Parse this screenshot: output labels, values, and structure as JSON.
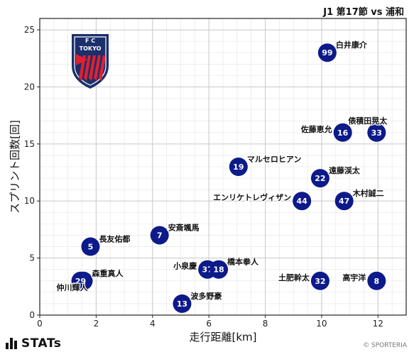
{
  "title": "J1 第17節 vs 浦和",
  "brand": "STATs",
  "copyright": "© SPORTERIA",
  "logo": {
    "top_text": "F   C",
    "middle_text": "TOKYO",
    "colors": {
      "navy": "#1b2f6b",
      "red": "#e02030"
    }
  },
  "colors": {
    "marker": "#0d1a8a",
    "grid": "#c8c8c8",
    "grid_minor": "#e4e4e4"
  },
  "chart_data": {
    "type": "scatter",
    "xlabel": "走行距離[km]",
    "ylabel": "スプリント回数[回]",
    "xlim": [
      0,
      13
    ],
    "ylim": [
      0,
      26
    ],
    "xticks": [
      0,
      2,
      4,
      6,
      8,
      10,
      12
    ],
    "yticks": [
      0,
      5,
      10,
      15,
      20,
      25
    ],
    "grid": true,
    "points": [
      {
        "number": "99",
        "name": "白井康介",
        "x": 10.2,
        "y": 23,
        "label_pos": "right"
      },
      {
        "number": "16",
        "name": "佐藤恵允",
        "x": 10.75,
        "y": 16,
        "label_pos": "left"
      },
      {
        "number": "33",
        "name": "俵積田晃太",
        "x": 11.95,
        "y": 16,
        "label_pos": "upper-left"
      },
      {
        "number": "19",
        "name": "マルセロヒアン",
        "x": 7.05,
        "y": 13,
        "label_pos": "right"
      },
      {
        "number": "22",
        "name": "遠藤渓太",
        "x": 9.95,
        "y": 12,
        "label_pos": "right"
      },
      {
        "number": "44",
        "name": "エンリケトレヴィザン",
        "x": 9.3,
        "y": 10,
        "label_pos": "left"
      },
      {
        "number": "47",
        "name": "木村誠二",
        "x": 10.8,
        "y": 10,
        "label_pos": "right"
      },
      {
        "number": "7",
        "name": "安斎颯馬",
        "x": 4.25,
        "y": 7,
        "label_pos": "right"
      },
      {
        "number": "5",
        "name": "長友佑都",
        "x": 1.8,
        "y": 6,
        "label_pos": "right"
      },
      {
        "number": "37",
        "name": "小泉慶",
        "x": 5.95,
        "y": 4,
        "label_pos": "left"
      },
      {
        "number": "18",
        "name": "橋本拳人",
        "x": 6.35,
        "y": 4,
        "label_pos": "right"
      },
      {
        "number": "3",
        "name": "森重真人",
        "x": 1.55,
        "y": 3,
        "label_pos": "right"
      },
      {
        "number": "29",
        "name": "仲川輝人",
        "x": 1.45,
        "y": 3,
        "label_pos": "lower-left"
      },
      {
        "number": "32",
        "name": "土肥幹太",
        "x": 9.95,
        "y": 3,
        "label_pos": "left"
      },
      {
        "number": "8",
        "name": "高宇洋",
        "x": 11.95,
        "y": 3,
        "label_pos": "left"
      },
      {
        "number": "13",
        "name": "波多野豪",
        "x": 5.05,
        "y": 1,
        "label_pos": "right"
      }
    ]
  }
}
